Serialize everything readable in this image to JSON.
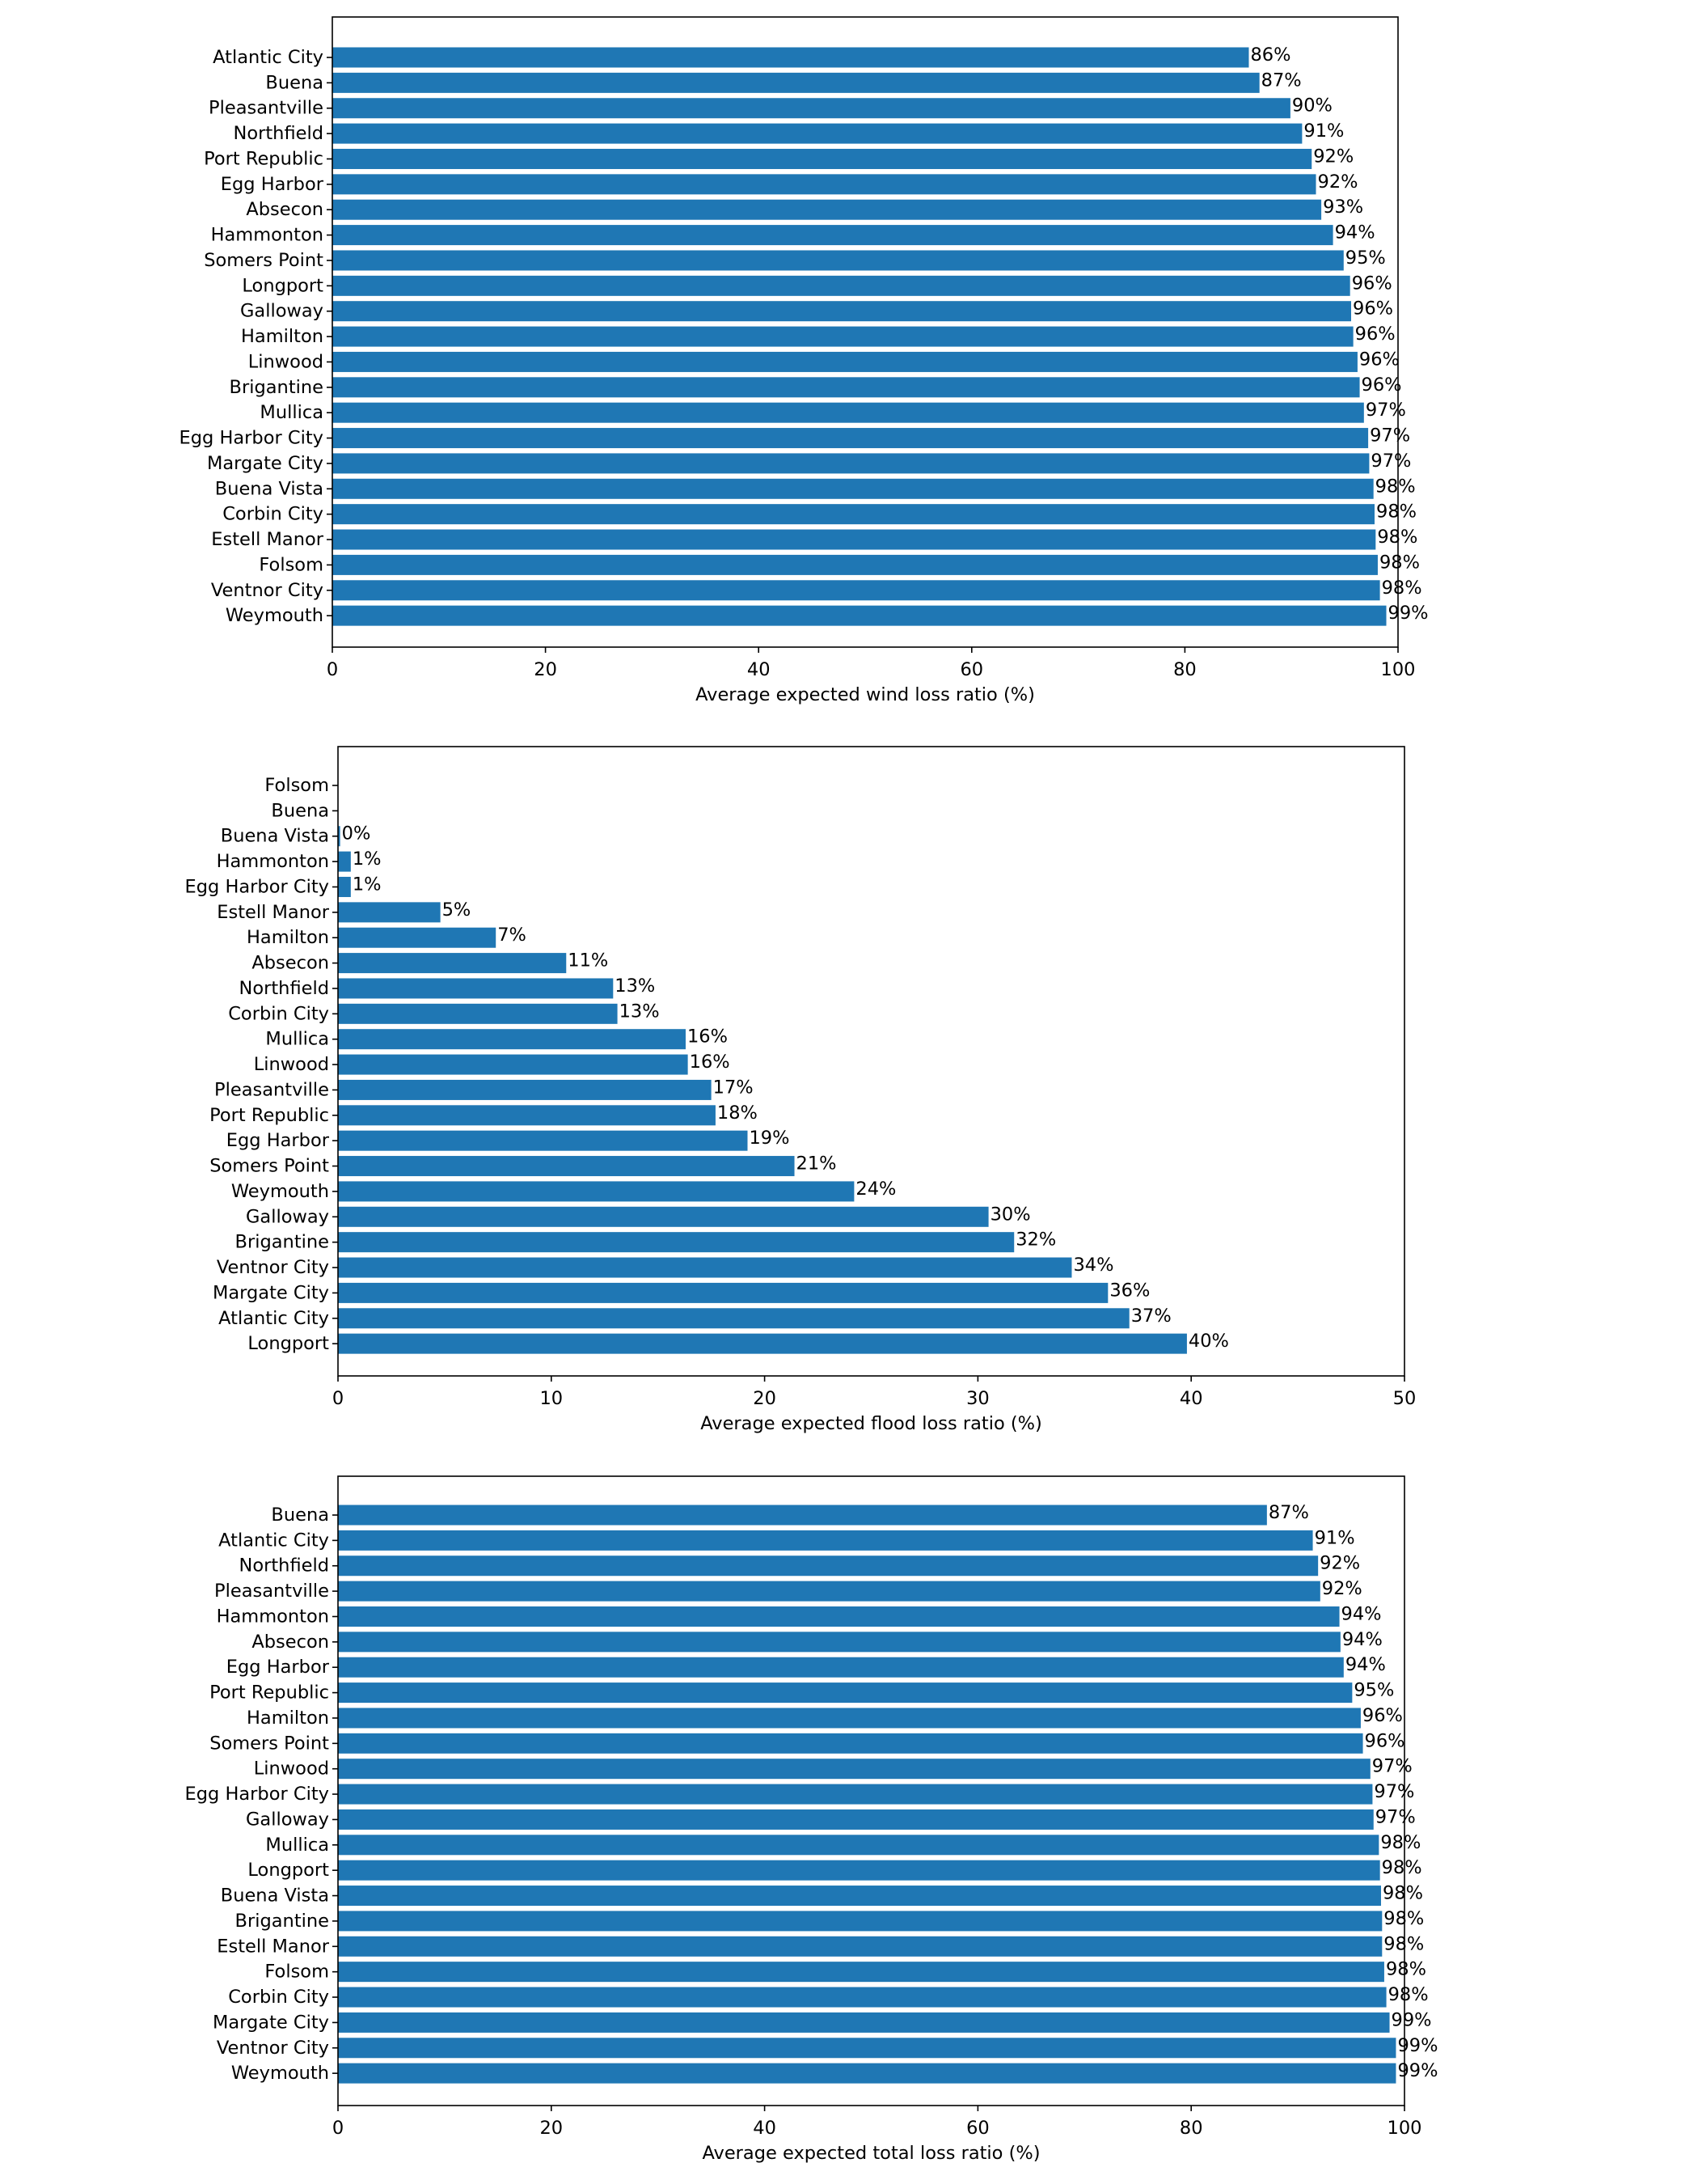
{
  "chart_data": [
    {
      "type": "bar",
      "orientation": "horizontal",
      "xlabel": "Average expected wind loss ratio (%)",
      "xlim": [
        0,
        100
      ],
      "xticks": [
        0,
        20,
        40,
        60,
        80,
        100
      ],
      "bar_color": "#1f77b4",
      "categories": [
        "Atlantic City",
        "Buena",
        "Pleasantville",
        "Northfield",
        "Port Republic",
        "Egg Harbor",
        "Absecon",
        "Hammonton",
        "Somers Point",
        "Longport",
        "Galloway",
        "Hamilton",
        "Linwood",
        "Brigantine",
        "Mullica",
        "Egg Harbor City",
        "Margate City",
        "Buena Vista",
        "Corbin City",
        "Estell Manor",
        "Folsom",
        "Ventnor City",
        "Weymouth"
      ],
      "values": [
        86.0,
        87.0,
        89.9,
        91.0,
        91.9,
        92.3,
        92.8,
        93.9,
        94.9,
        95.5,
        95.6,
        95.8,
        96.2,
        96.4,
        96.8,
        97.2,
        97.3,
        97.7,
        97.8,
        97.9,
        98.1,
        98.3,
        98.9
      ],
      "labels": [
        "86%",
        "87%",
        "90%",
        "91%",
        "92%",
        "92%",
        "93%",
        "94%",
        "95%",
        "96%",
        "96%",
        "96%",
        "96%",
        "96%",
        "97%",
        "97%",
        "97%",
        "98%",
        "98%",
        "98%",
        "98%",
        "98%",
        "99%"
      ]
    },
    {
      "type": "bar",
      "orientation": "horizontal",
      "xlabel": "Average expected flood loss ratio (%)",
      "xlim": [
        0,
        50
      ],
      "xticks": [
        0,
        10,
        20,
        30,
        40,
        50
      ],
      "bar_color": "#1f77b4",
      "categories": [
        "Folsom",
        "Buena",
        "Buena Vista",
        "Hammonton",
        "Egg Harbor City",
        "Estell Manor",
        "Hamilton",
        "Absecon",
        "Northfield",
        "Corbin City",
        "Mullica",
        "Linwood",
        "Pleasantville",
        "Port Republic",
        "Egg Harbor",
        "Somers Point",
        "Weymouth",
        "Galloway",
        "Brigantine",
        "Ventnor City",
        "Margate City",
        "Atlantic City",
        "Longport"
      ],
      "values": [
        0,
        0,
        0.1,
        0.6,
        0.6,
        4.8,
        7.4,
        10.7,
        12.9,
        13.1,
        16.3,
        16.4,
        17.5,
        17.7,
        19.2,
        21.4,
        24.2,
        30.5,
        31.7,
        34.4,
        36.1,
        37.1,
        39.8
      ],
      "labels": [
        "",
        "",
        "0%",
        "1%",
        "1%",
        "5%",
        "7%",
        "11%",
        "13%",
        "13%",
        "16%",
        "16%",
        "17%",
        "18%",
        "19%",
        "21%",
        "24%",
        "30%",
        "32%",
        "34%",
        "36%",
        "37%",
        "40%"
      ]
    },
    {
      "type": "bar",
      "orientation": "horizontal",
      "xlabel": "Average expected total loss ratio (%)",
      "xlim": [
        0,
        100
      ],
      "xticks": [
        0,
        20,
        40,
        60,
        80,
        100
      ],
      "bar_color": "#1f77b4",
      "categories": [
        "Buena",
        "Atlantic City",
        "Northfield",
        "Pleasantville",
        "Hammonton",
        "Absecon",
        "Egg Harbor",
        "Port Republic",
        "Hamilton",
        "Somers Point",
        "Linwood",
        "Egg Harbor City",
        "Galloway",
        "Mullica",
        "Longport",
        "Buena Vista",
        "Brigantine",
        "Estell Manor",
        "Folsom",
        "Corbin City",
        "Margate City",
        "Ventnor City",
        "Weymouth"
      ],
      "values": [
        87.1,
        91.4,
        91.9,
        92.1,
        93.9,
        94.0,
        94.3,
        95.1,
        95.9,
        96.1,
        96.8,
        97.0,
        97.1,
        97.6,
        97.7,
        97.8,
        97.9,
        97.9,
        98.1,
        98.3,
        98.6,
        99.2,
        99.2
      ],
      "labels": [
        "87%",
        "91%",
        "92%",
        "92%",
        "94%",
        "94%",
        "94%",
        "95%",
        "96%",
        "96%",
        "97%",
        "97%",
        "97%",
        "98%",
        "98%",
        "98%",
        "98%",
        "98%",
        "98%",
        "98%",
        "99%",
        "99%",
        "99%"
      ]
    }
  ]
}
